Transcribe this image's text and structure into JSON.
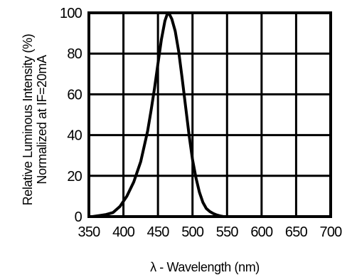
{
  "chart_data": {
    "type": "line",
    "title": "",
    "xlabel": "λ - Wavelength (nm)",
    "ylabel_lines": [
      "Relative Luminous Intensity (%)",
      "Normalized at IF=20mA"
    ],
    "xlim": [
      350,
      700
    ],
    "ylim": [
      0,
      100
    ],
    "xticks": [
      350,
      400,
      450,
      500,
      550,
      600,
      650,
      700
    ],
    "yticks": [
      0,
      20,
      40,
      60,
      80,
      100
    ],
    "grid": true,
    "legend": "none",
    "series": [
      {
        "x": [
          355,
          365,
          375,
          385,
          395,
          405,
          415,
          425,
          435,
          440,
          445,
          450,
          455,
          460,
          463,
          465,
          467,
          470,
          475,
          480,
          485,
          490,
          495,
          500,
          505,
          510,
          515,
          520,
          525,
          530,
          535,
          540,
          545,
          550
        ],
        "y": [
          0,
          0.5,
          1,
          2,
          5,
          10,
          17,
          27,
          42,
          52,
          63,
          75,
          87,
          96,
          99,
          100,
          99,
          97,
          91,
          81,
          68,
          54,
          40,
          28,
          19,
          12,
          7,
          4,
          2.5,
          1.5,
          0.8,
          0.3,
          0,
          0
        ],
        "color": "#000000"
      }
    ]
  }
}
